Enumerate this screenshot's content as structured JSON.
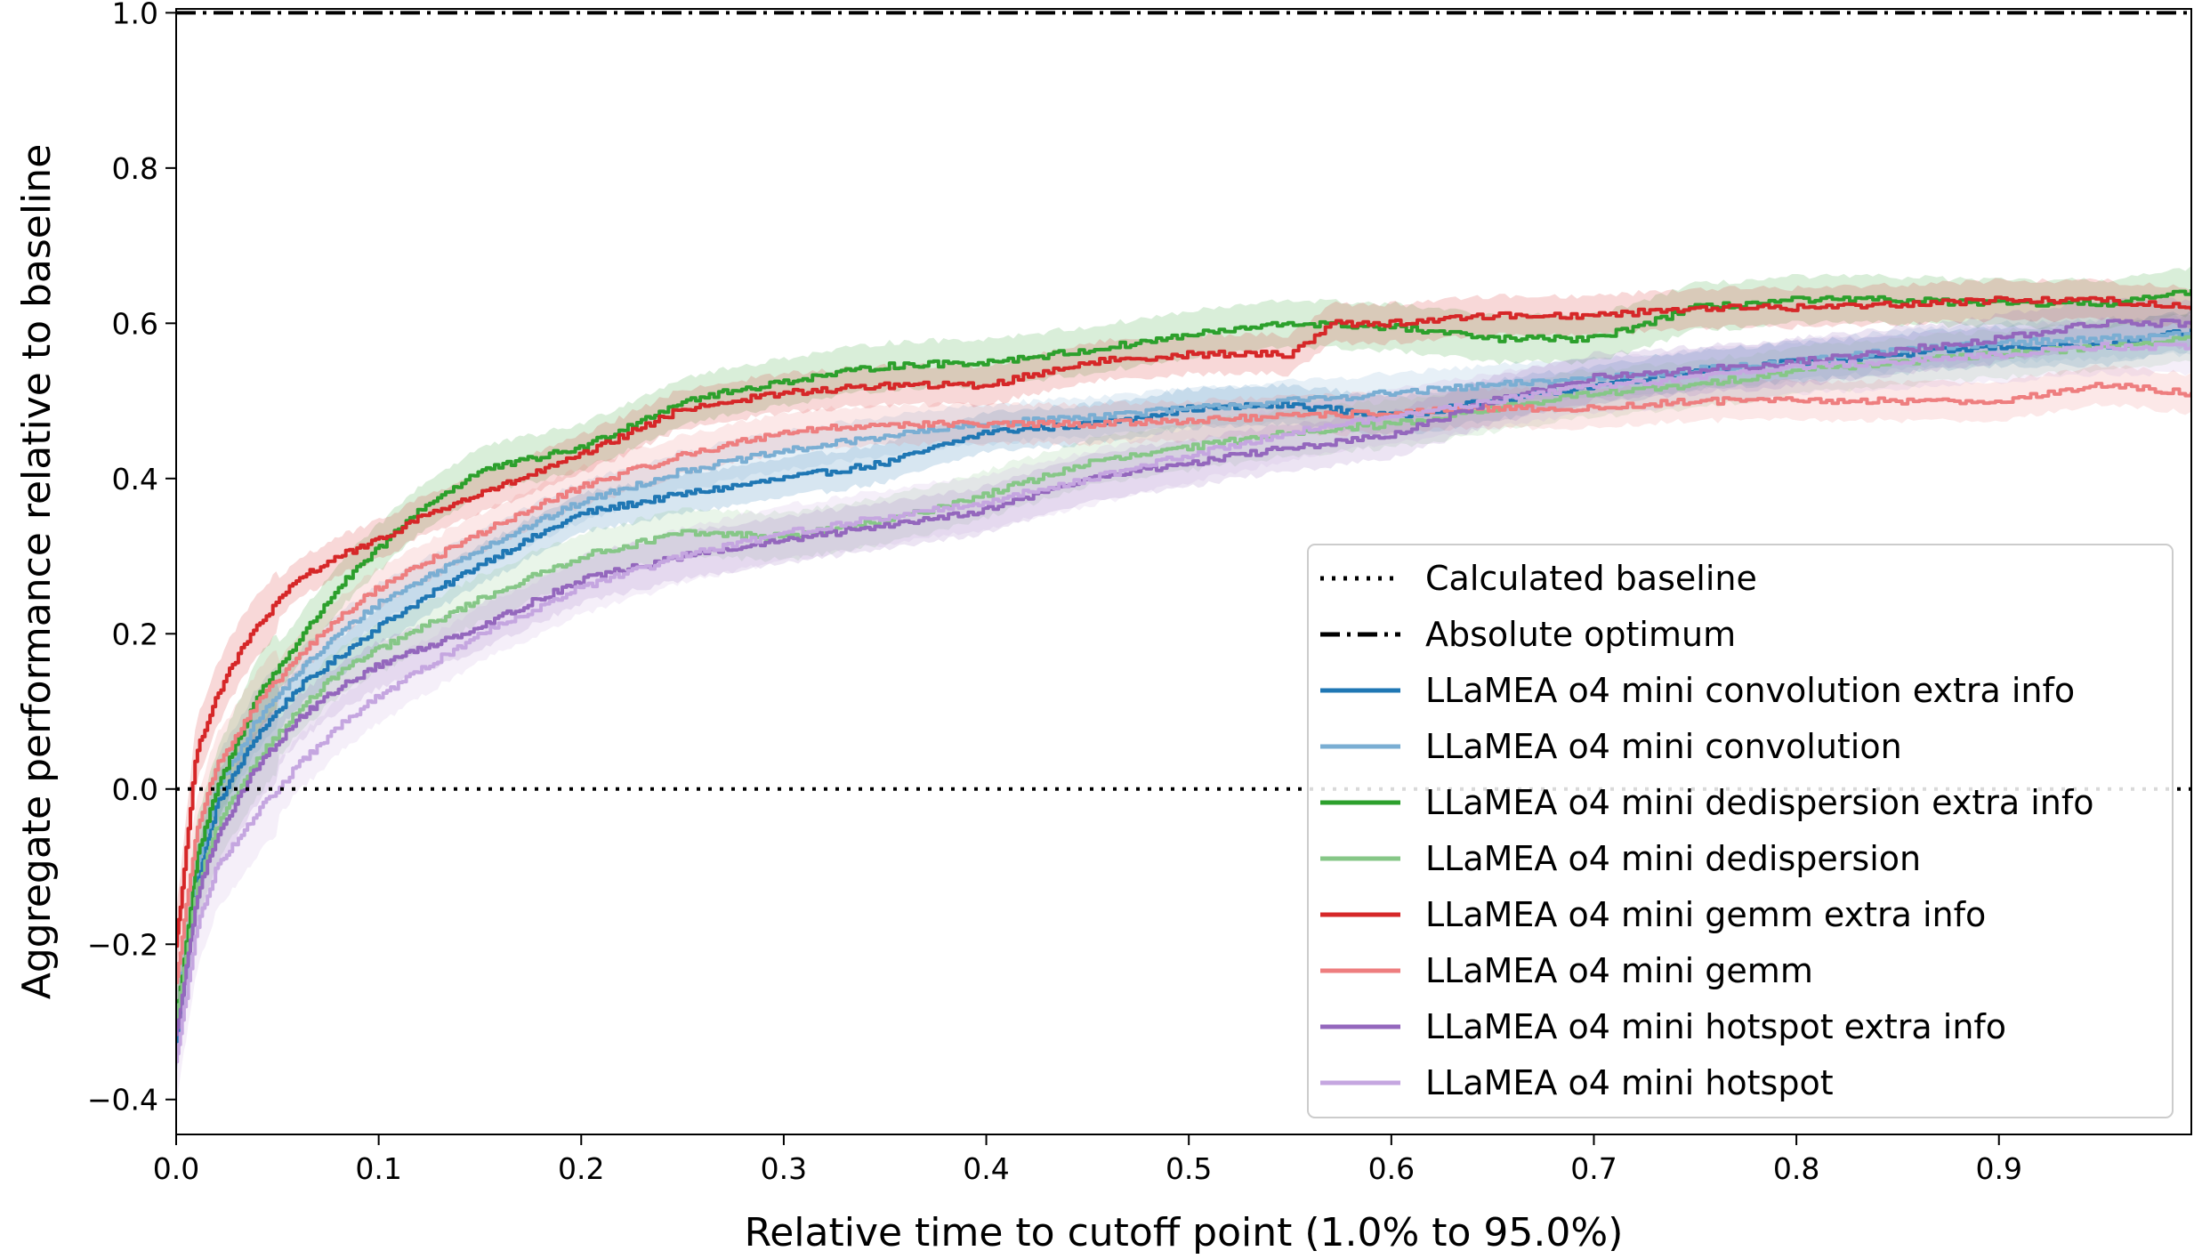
{
  "chart_data": {
    "type": "line",
    "title": "",
    "xlabel": "Relative time to cutoff point (1.0% to 95.0%)",
    "ylabel": "Aggregate performance relative to baseline",
    "xlim": [
      0.0,
      0.995
    ],
    "ylim": [
      -0.445,
      1.005
    ],
    "xticks": [
      0.0,
      0.1,
      0.2,
      0.3,
      0.4,
      0.5,
      0.6,
      0.7,
      0.8,
      0.9
    ],
    "xtick_labels": [
      "0.0",
      "0.1",
      "0.2",
      "0.3",
      "0.4",
      "0.5",
      "0.6",
      "0.7",
      "0.8",
      "0.9"
    ],
    "yticks": [
      -0.4,
      -0.2,
      0.0,
      0.2,
      0.4,
      0.6,
      0.8,
      1.0
    ],
    "ytick_labels": [
      "−0.4",
      "−0.2",
      "0.0",
      "0.2",
      "0.4",
      "0.6",
      "0.8",
      "1.0"
    ],
    "legend_position": "lower-right",
    "reference_lines": [
      {
        "name": "Calculated baseline",
        "y": 0.0,
        "style": "dotted",
        "color": "#000000"
      },
      {
        "name": "Absolute optimum",
        "y": 1.0,
        "style": "dashdot",
        "color": "#000000"
      }
    ],
    "series": [
      {
        "name": "LLaMEA o4 mini convolution extra info",
        "color": "#1f77b4",
        "band": 0.025,
        "x": [
          0.0,
          0.01,
          0.02,
          0.04,
          0.06,
          0.08,
          0.1,
          0.15,
          0.2,
          0.25,
          0.3,
          0.35,
          0.4,
          0.45,
          0.5,
          0.55,
          0.6,
          0.65,
          0.7,
          0.75,
          0.8,
          0.85,
          0.9,
          0.95,
          0.995
        ],
        "y": [
          -0.33,
          -0.12,
          -0.02,
          0.07,
          0.13,
          0.17,
          0.21,
          0.29,
          0.355,
          0.38,
          0.4,
          0.42,
          0.46,
          0.47,
          0.49,
          0.495,
          0.48,
          0.5,
          0.52,
          0.54,
          0.55,
          0.56,
          0.57,
          0.57,
          0.59
        ]
      },
      {
        "name": "LLaMEA o4 mini convolution",
        "color": "#7aaed3",
        "band": 0.025,
        "x": [
          0.0,
          0.01,
          0.02,
          0.04,
          0.06,
          0.08,
          0.1,
          0.15,
          0.2,
          0.25,
          0.3,
          0.35,
          0.4,
          0.45,
          0.5,
          0.55,
          0.6,
          0.65,
          0.7,
          0.75,
          0.8,
          0.85,
          0.9,
          0.95,
          0.995
        ],
        "y": [
          -0.3,
          -0.1,
          0.0,
          0.09,
          0.15,
          0.2,
          0.24,
          0.31,
          0.37,
          0.41,
          0.435,
          0.455,
          0.47,
          0.48,
          0.49,
          0.5,
          0.51,
          0.52,
          0.53,
          0.54,
          0.55,
          0.565,
          0.575,
          0.58,
          0.585
        ]
      },
      {
        "name": "LLaMEA o4 mini dedispersion extra info",
        "color": "#2ca02c",
        "band": 0.03,
        "x": [
          0.0,
          0.01,
          0.02,
          0.04,
          0.06,
          0.08,
          0.1,
          0.12,
          0.15,
          0.2,
          0.25,
          0.3,
          0.35,
          0.4,
          0.45,
          0.5,
          0.55,
          0.6,
          0.65,
          0.7,
          0.75,
          0.8,
          0.85,
          0.9,
          0.95,
          0.995
        ],
        "y": [
          -0.3,
          -0.09,
          0.0,
          0.12,
          0.19,
          0.26,
          0.31,
          0.36,
          0.41,
          0.44,
          0.5,
          0.525,
          0.545,
          0.55,
          0.565,
          0.585,
          0.6,
          0.595,
          0.58,
          0.58,
          0.62,
          0.63,
          0.63,
          0.625,
          0.625,
          0.64
        ]
      },
      {
        "name": "LLaMEA o4 mini dedispersion",
        "color": "#86c787",
        "band": 0.03,
        "x": [
          0.0,
          0.01,
          0.02,
          0.04,
          0.06,
          0.08,
          0.1,
          0.15,
          0.2,
          0.25,
          0.3,
          0.35,
          0.4,
          0.45,
          0.5,
          0.55,
          0.6,
          0.65,
          0.7,
          0.75,
          0.8,
          0.85,
          0.9,
          0.95,
          0.995
        ],
        "y": [
          -0.3,
          -0.13,
          -0.05,
          0.04,
          0.1,
          0.15,
          0.18,
          0.245,
          0.3,
          0.33,
          0.325,
          0.345,
          0.38,
          0.42,
          0.44,
          0.46,
          0.47,
          0.49,
          0.51,
          0.52,
          0.54,
          0.55,
          0.56,
          0.57,
          0.58
        ]
      },
      {
        "name": "LLaMEA o4 mini gemm extra info",
        "color": "#d62728",
        "band": 0.025,
        "x": [
          0.0,
          0.01,
          0.02,
          0.03,
          0.04,
          0.05,
          0.06,
          0.08,
          0.1,
          0.12,
          0.15,
          0.2,
          0.25,
          0.3,
          0.35,
          0.4,
          0.45,
          0.5,
          0.55,
          0.57,
          0.6,
          0.65,
          0.7,
          0.75,
          0.8,
          0.85,
          0.9,
          0.95,
          0.995
        ],
        "y": [
          -0.2,
          0.05,
          0.12,
          0.17,
          0.21,
          0.24,
          0.27,
          0.3,
          0.32,
          0.35,
          0.38,
          0.43,
          0.49,
          0.51,
          0.52,
          0.52,
          0.55,
          0.56,
          0.56,
          0.6,
          0.6,
          0.61,
          0.61,
          0.62,
          0.62,
          0.625,
          0.63,
          0.63,
          0.62
        ]
      },
      {
        "name": "LLaMEA o4 mini gemm",
        "color": "#ee7e7f",
        "band": 0.025,
        "x": [
          0.0,
          0.01,
          0.02,
          0.04,
          0.06,
          0.08,
          0.1,
          0.15,
          0.2,
          0.25,
          0.3,
          0.35,
          0.4,
          0.45,
          0.5,
          0.55,
          0.6,
          0.65,
          0.7,
          0.75,
          0.8,
          0.85,
          0.9,
          0.95,
          0.995
        ],
        "y": [
          -0.25,
          -0.05,
          0.03,
          0.11,
          0.17,
          0.22,
          0.26,
          0.33,
          0.39,
          0.43,
          0.46,
          0.47,
          0.47,
          0.47,
          0.475,
          0.48,
          0.485,
          0.49,
          0.49,
          0.5,
          0.5,
          0.5,
          0.5,
          0.52,
          0.51
        ]
      },
      {
        "name": "LLaMEA o4 mini hotspot extra info",
        "color": "#9467bd",
        "band": 0.03,
        "x": [
          0.0,
          0.01,
          0.02,
          0.04,
          0.06,
          0.08,
          0.1,
          0.15,
          0.2,
          0.25,
          0.3,
          0.35,
          0.4,
          0.45,
          0.5,
          0.55,
          0.6,
          0.65,
          0.7,
          0.75,
          0.8,
          0.85,
          0.9,
          0.95,
          0.995
        ],
        "y": [
          -0.32,
          -0.14,
          -0.06,
          0.03,
          0.09,
          0.13,
          0.16,
          0.21,
          0.27,
          0.3,
          0.32,
          0.34,
          0.36,
          0.4,
          0.42,
          0.44,
          0.455,
          0.5,
          0.53,
          0.54,
          0.55,
          0.565,
          0.58,
          0.6,
          0.6
        ]
      },
      {
        "name": "LLaMEA o4 mini hotspot",
        "color": "#c5a6e0",
        "band": 0.035,
        "x": [
          0.0,
          0.01,
          0.02,
          0.04,
          0.06,
          0.08,
          0.1,
          0.15,
          0.2,
          0.25,
          0.3,
          0.35,
          0.4,
          0.45,
          0.5,
          0.55,
          0.6,
          0.65,
          0.7,
          0.75,
          0.8,
          0.85,
          0.9,
          0.95,
          0.995
        ],
        "y": [
          -0.35,
          -0.18,
          -0.1,
          -0.03,
          0.03,
          0.08,
          0.12,
          0.2,
          0.26,
          0.3,
          0.33,
          0.35,
          0.37,
          0.4,
          0.43,
          0.46,
          0.48,
          0.5,
          0.52,
          0.53,
          0.545,
          0.55,
          0.56,
          0.57,
          0.57
        ]
      }
    ]
  }
}
